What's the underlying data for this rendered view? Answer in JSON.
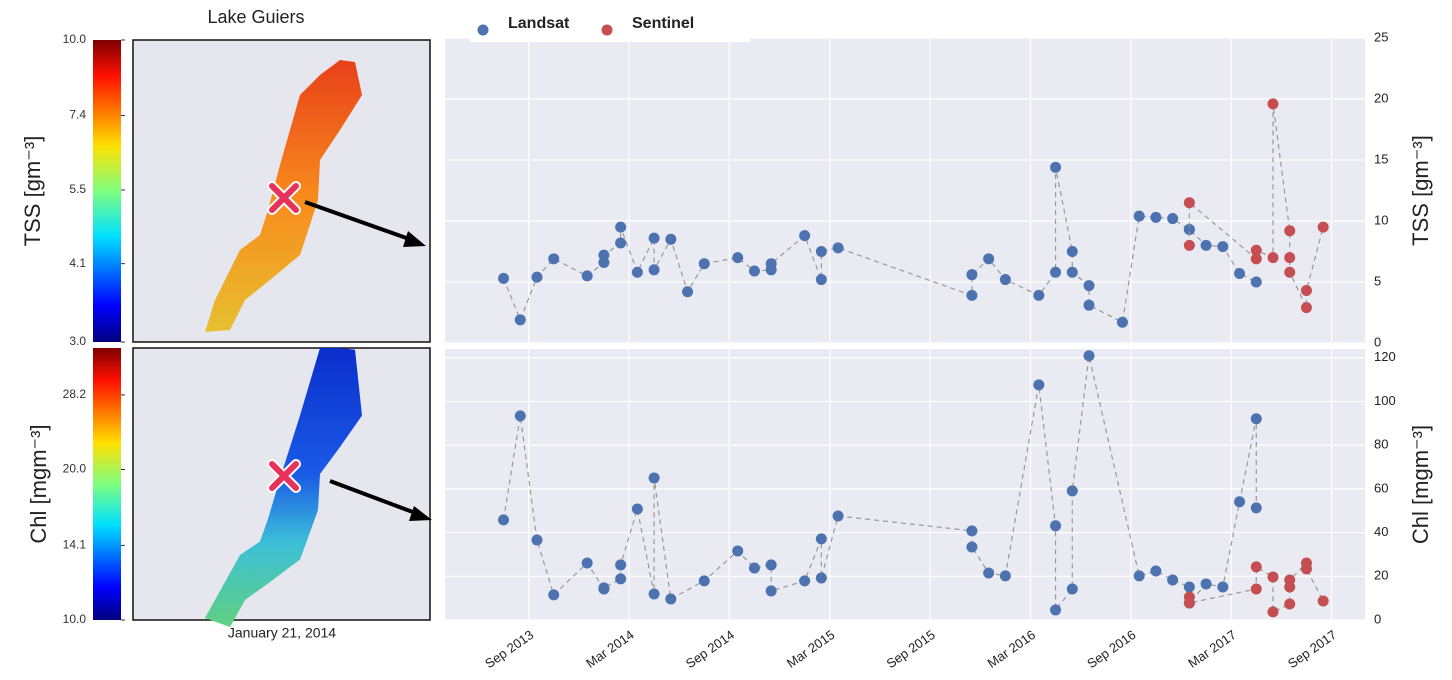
{
  "maps": {
    "title": "Lake Guiers",
    "date": "January 21, 2014",
    "colorbars": [
      {
        "label": "TSS [gm⁻³]",
        "lim": [
          3,
          10
        ],
        "log": true,
        "ticks": [
          {
            "value": 10,
            "label": "10.0"
          },
          7.4,
          5.5,
          4.1,
          {
            "value": 3,
            "label": "3.0"
          }
        ]
      },
      {
        "label": "Chl [mgm⁻³]",
        "lim": [
          10,
          35
        ],
        "log": true,
        "ticks": [
          28.2,
          {
            "value": 20,
            "label": "20.0"
          },
          14.1,
          {
            "value": 10,
            "label": "10.0"
          }
        ]
      }
    ]
  },
  "chart_data": [
    {
      "type": "line",
      "ylabel": "TSS [gm⁻³]",
      "ylim": [
        0,
        25
      ],
      "yticks": [
        0,
        5,
        10,
        15,
        20,
        25
      ],
      "grid": true,
      "legend": "top",
      "series": [
        {
          "name": "Landsat",
          "color": "#4c72b0",
          "x": [
            "2013-07",
            "2013-08",
            "2013-09",
            "2013-10",
            "2013-12",
            "2014-01",
            "2014-01",
            "2014-02",
            "2014-02",
            "2014-03",
            "2014-04",
            "2014-04",
            "2014-05",
            "2014-06",
            "2014-07",
            "2014-09",
            "2014-10",
            "2014-11",
            "2014-11",
            "2015-01",
            "2015-02",
            "2015-02",
            "2015-03",
            "2015-11",
            "2015-11",
            "2015-12",
            "2016-01",
            "2016-03",
            "2016-04",
            "2016-04",
            "2016-05",
            "2016-05",
            "2016-06",
            "2016-06",
            "2016-08",
            "2016-09",
            "2016-10",
            "2016-11",
            "2016-12",
            "2016-12",
            "2017-01",
            "2017-02",
            "2017-03",
            "2017-04"
          ],
          "values": [
            5.3,
            1.9,
            5.4,
            6.9,
            5.5,
            6.6,
            7.2,
            8.2,
            9.5,
            5.8,
            8.6,
            6.0,
            8.5,
            4.2,
            6.5,
            7.0,
            5.9,
            6.0,
            6.5,
            8.8,
            5.2,
            7.5,
            7.8,
            3.9,
            5.6,
            6.9,
            5.2,
            3.9,
            5.8,
            14.4,
            7.5,
            5.8,
            4.7,
            3.1,
            1.7,
            10.4,
            10.3,
            10.2,
            9.3,
            9.3,
            8.0,
            7.9,
            5.7,
            5.0
          ]
        },
        {
          "name": "Sentinel",
          "color": "#c44e52",
          "x": [
            "2016-12",
            "2016-12",
            "2017-04",
            "2017-04",
            "2017-05",
            "2017-05",
            "2017-06",
            "2017-06",
            "2017-06",
            "2017-07",
            "2017-07",
            "2017-08"
          ],
          "values": [
            8.0,
            11.5,
            6.9,
            7.6,
            7.0,
            19.6,
            9.2,
            7.0,
            5.8,
            2.9,
            4.3,
            9.5
          ]
        }
      ]
    },
    {
      "type": "line",
      "ylabel": "Chl [mgm⁻³]",
      "ylim": [
        0,
        124
      ],
      "yticks": [
        0,
        20,
        40,
        60,
        80,
        100,
        120
      ],
      "grid": true,
      "xlim": [
        "2013-04",
        "2017-11"
      ],
      "xticks": [
        {
          "value": "2013-09",
          "label": "Sep 2013"
        },
        {
          "value": "2014-03",
          "label": "Mar 2014"
        },
        {
          "value": "2014-09",
          "label": "Sep 2014"
        },
        {
          "value": "2015-03",
          "label": "Mar 2015"
        },
        {
          "value": "2015-09",
          "label": "Sep 2015"
        },
        {
          "value": "2016-03",
          "label": "Mar 2016"
        },
        {
          "value": "2016-09",
          "label": "Sep 2016"
        },
        {
          "value": "2017-03",
          "label": "Mar 2017"
        },
        {
          "value": "2017-09",
          "label": "Sep 2017"
        }
      ],
      "series": [
        {
          "color": "#4c72b0",
          "x": [
            "2013-07",
            "2013-08",
            "2013-09",
            "2013-10",
            "2013-12",
            "2014-01",
            "2014-01",
            "2014-02",
            "2014-02",
            "2014-03",
            "2014-04",
            "2014-04",
            "2014-05",
            "2014-07",
            "2014-09",
            "2014-10",
            "2014-11",
            "2014-11",
            "2015-01",
            "2015-02",
            "2015-02",
            "2015-03",
            "2015-11",
            "2015-11",
            "2015-12",
            "2016-01",
            "2016-03",
            "2016-04",
            "2016-04",
            "2016-05",
            "2016-05",
            "2016-06",
            "2016-09",
            "2016-10",
            "2016-11",
            "2016-12",
            "2016-12",
            "2017-01",
            "2017-02",
            "2017-03",
            "2017-04",
            "2017-04"
          ],
          "values": [
            45.8,
            93.4,
            36.6,
            11.5,
            26.1,
            14.2,
            14.7,
            18.8,
            25.2,
            50.8,
            11.9,
            65.0,
            9.6,
            17.9,
            31.6,
            23.8,
            25.2,
            13.3,
            17.9,
            37.1,
            19.2,
            47.6,
            40.8,
            33.4,
            21.5,
            20.2,
            107.6,
            43.1,
            4.6,
            14.2,
            59.1,
            120.9,
            20.2,
            22.4,
            18.3,
            15.1,
            7.8,
            16.5,
            15.1,
            54.1,
            92.1,
            51.3
          ]
        },
        {
          "color": "#c44e52",
          "x": [
            "2016-12",
            "2016-12",
            "2017-04",
            "2017-04",
            "2017-05",
            "2017-05",
            "2017-06",
            "2017-06",
            "2017-06",
            "2017-07",
            "2017-07",
            "2017-08"
          ],
          "values": [
            10.5,
            7.8,
            14.2,
            24.3,
            19.7,
            3.7,
            7.3,
            15.1,
            18.3,
            26.1,
            23.4,
            8.7
          ]
        }
      ]
    }
  ]
}
